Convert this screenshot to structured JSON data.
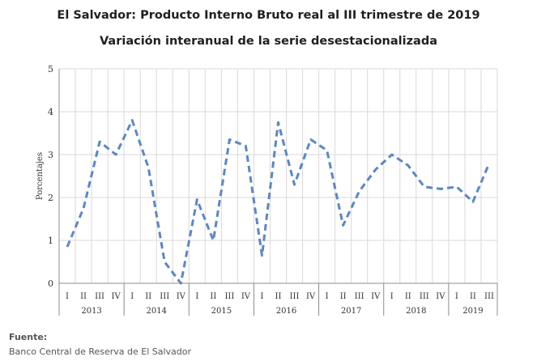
{
  "chart_data": {
    "type": "line",
    "title": "El Salvador: Producto Interno Bruto real al III trimestre de 2019",
    "subtitle": "Variación interanual de la serie desestacionalizada",
    "xlabel": "",
    "ylabel": "Porcentajes",
    "ylim": [
      0,
      5
    ],
    "yticks": [
      "0",
      "1",
      "2",
      "3",
      "4",
      "5"
    ],
    "grid": true,
    "legend": "none",
    "line_color": "#5b87c5",
    "line_style": "dashed",
    "quarter_labels": [
      "I",
      "II",
      "III",
      "IV",
      "I",
      "II",
      "III",
      "IV",
      "I",
      "II",
      "III",
      "IV",
      "I",
      "II",
      "III",
      "IV",
      "I",
      "II",
      "III",
      "IV",
      "I",
      "II",
      "III",
      "IV",
      "I",
      "II",
      "III"
    ],
    "years": [
      {
        "label": "2013",
        "quarters": 4
      },
      {
        "label": "2014",
        "quarters": 4
      },
      {
        "label": "2015",
        "quarters": 4
      },
      {
        "label": "2016",
        "quarters": 4
      },
      {
        "label": "2017",
        "quarters": 4
      },
      {
        "label": "2018",
        "quarters": 4
      },
      {
        "label": "2019",
        "quarters": 3
      }
    ],
    "series": [
      {
        "values": [
          0.85,
          1.75,
          3.3,
          3.0,
          3.8,
          2.7,
          0.5,
          0.0,
          1.95,
          1.0,
          3.35,
          3.2,
          0.65,
          3.75,
          2.3,
          3.35,
          3.1,
          1.35,
          2.15,
          2.65,
          3.0,
          2.75,
          2.25,
          2.2,
          2.25,
          1.9,
          2.8
        ]
      }
    ]
  },
  "source": {
    "label": "Fuente:",
    "text": "Banco Central de Reserva de El Salvador"
  }
}
